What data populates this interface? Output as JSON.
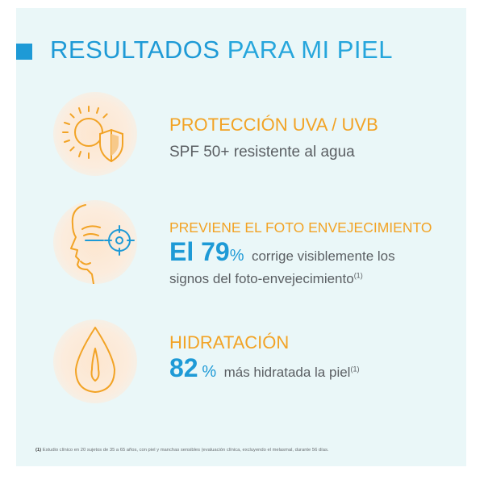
{
  "title": {
    "strong": "RESULTADOS",
    "light": "PARA MI PIEL"
  },
  "benefits": [
    {
      "icon": "sun-shield-icon",
      "heading": "PROTECCIÓN UVA / UVB",
      "text": "SPF 50+ resistente al agua"
    },
    {
      "icon": "face-target-icon",
      "heading": "PREVIENE EL FOTO ENVEJECIMIENTO",
      "big_prefix": "El 79",
      "big_pct": "%",
      "text_line1": "corrige visiblemente los",
      "text_line2": "signos del foto-envejecimiento",
      "ref": "(1)"
    },
    {
      "icon": "water-drop-icon",
      "heading": "HIDRATACIÓN",
      "big_prefix": "82",
      "big_pct": "%",
      "text": "más hidratada la piel",
      "ref": "(1)"
    }
  ],
  "footnote": {
    "ref": "(1)",
    "text": "Estudio clínico en 20 sujetos de 35 a 65 años, con piel y manchas sensibles (evaluación clínica, excluyendo el melasmal, durante 56 días."
  },
  "colors": {
    "background": "#eaf7f8",
    "accent_blue": "#1e9ad6",
    "accent_orange": "#f2a325",
    "text_gray": "#5b5f63"
  }
}
